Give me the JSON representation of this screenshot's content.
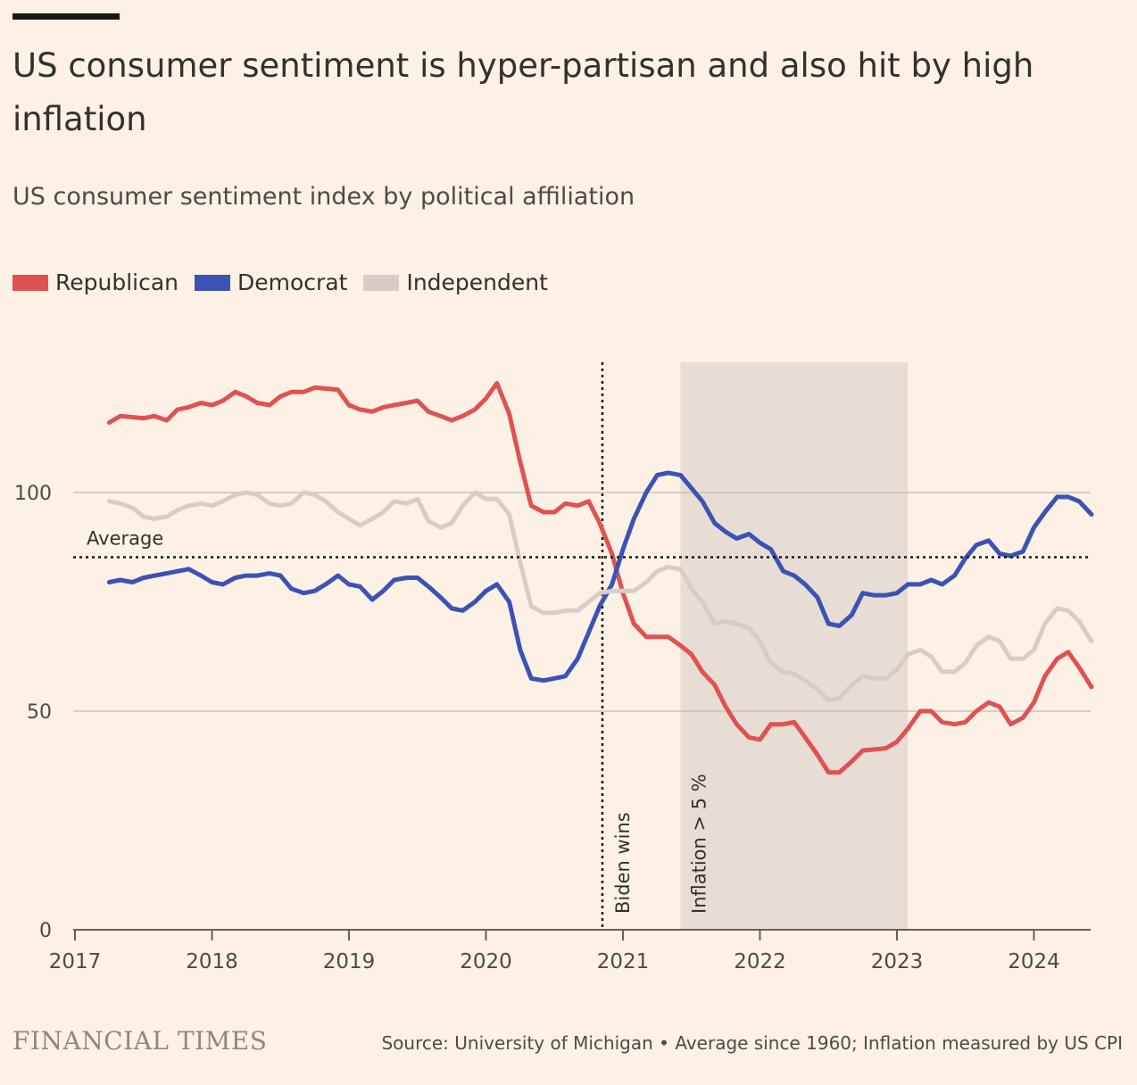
{
  "header": {
    "title": "US consumer sentiment is hyper-partisan and also hit by high inflation",
    "subtitle": "US consumer sentiment index by political affiliation"
  },
  "legend": [
    {
      "label": "Republican",
      "color": "#e05252"
    },
    {
      "label": "Democrat",
      "color": "#3a53b5"
    },
    {
      "label": "Independent",
      "color": "#d8cdc6"
    }
  ],
  "footer": {
    "brand": "FINANCIAL TIMES",
    "source": "Source: University of Michigan • Average since 1960; Inflation measured by US CPI"
  },
  "chart_data": {
    "type": "line",
    "xlim": [
      2017,
      2024.42
    ],
    "ylim": [
      0,
      130
    ],
    "x_ticks": [
      "2017",
      "2018",
      "2019",
      "2020",
      "2021",
      "2022",
      "2023",
      "2024"
    ],
    "y_ticks": [
      0,
      50,
      100
    ],
    "gridlines": true,
    "reference_line": {
      "label": "Average",
      "value": 85.2
    },
    "events": [
      {
        "label": "Biden wins",
        "x": 2020.85
      }
    ],
    "shaded_periods": [
      {
        "label": "Inflation > 5 %",
        "start": 2021.42,
        "end": 2023.08
      }
    ],
    "series": [
      {
        "name": "Republican",
        "color": "#e05252",
        "points": [
          [
            2017.25,
            116
          ],
          [
            2017.33,
            117.5
          ],
          [
            2017.5,
            117
          ],
          [
            2017.58,
            117.5
          ],
          [
            2017.67,
            116.5
          ],
          [
            2017.75,
            119
          ],
          [
            2017.83,
            119.5
          ],
          [
            2017.92,
            120.5
          ],
          [
            2018.0,
            120
          ],
          [
            2018.08,
            121
          ],
          [
            2018.17,
            123
          ],
          [
            2018.25,
            122
          ],
          [
            2018.33,
            120.5
          ],
          [
            2018.42,
            120
          ],
          [
            2018.5,
            122
          ],
          [
            2018.58,
            123
          ],
          [
            2018.67,
            123
          ],
          [
            2018.75,
            124
          ],
          [
            2018.92,
            123.5
          ],
          [
            2019.0,
            120
          ],
          [
            2019.08,
            119
          ],
          [
            2019.17,
            118.5
          ],
          [
            2019.25,
            119.5
          ],
          [
            2019.33,
            120
          ],
          [
            2019.42,
            120.5
          ],
          [
            2019.5,
            121
          ],
          [
            2019.58,
            118.5
          ],
          [
            2019.67,
            117.5
          ],
          [
            2019.75,
            116.5
          ],
          [
            2019.83,
            117.5
          ],
          [
            2019.92,
            119
          ],
          [
            2020.0,
            121.5
          ],
          [
            2020.08,
            125
          ],
          [
            2020.17,
            118
          ],
          [
            2020.25,
            107
          ],
          [
            2020.33,
            97
          ],
          [
            2020.42,
            95.5
          ],
          [
            2020.5,
            95.5
          ],
          [
            2020.58,
            97.5
          ],
          [
            2020.67,
            97
          ],
          [
            2020.75,
            98
          ],
          [
            2020.83,
            93
          ],
          [
            2020.92,
            86
          ],
          [
            2021.0,
            77
          ],
          [
            2021.08,
            70
          ],
          [
            2021.17,
            67
          ],
          [
            2021.25,
            67
          ],
          [
            2021.33,
            67
          ],
          [
            2021.42,
            65
          ],
          [
            2021.5,
            63
          ],
          [
            2021.58,
            59
          ],
          [
            2021.67,
            56
          ],
          [
            2021.75,
            51
          ],
          [
            2021.83,
            47
          ],
          [
            2021.92,
            44
          ],
          [
            2022.0,
            43.5
          ],
          [
            2022.08,
            47
          ],
          [
            2022.17,
            47
          ],
          [
            2022.25,
            47.5
          ],
          [
            2022.33,
            44
          ],
          [
            2022.42,
            40
          ],
          [
            2022.5,
            36
          ],
          [
            2022.58,
            36
          ],
          [
            2022.67,
            38.5
          ],
          [
            2022.75,
            41
          ],
          [
            2022.92,
            41.5
          ],
          [
            2023.0,
            43
          ],
          [
            2023.08,
            46
          ],
          [
            2023.17,
            50
          ],
          [
            2023.25,
            50
          ],
          [
            2023.33,
            47.5
          ],
          [
            2023.42,
            47
          ],
          [
            2023.5,
            47.5
          ],
          [
            2023.58,
            50
          ],
          [
            2023.67,
            52
          ],
          [
            2023.75,
            51
          ],
          [
            2023.83,
            47
          ],
          [
            2023.92,
            48.5
          ],
          [
            2024.0,
            52
          ],
          [
            2024.08,
            58
          ],
          [
            2024.17,
            62
          ],
          [
            2024.25,
            63.5
          ],
          [
            2024.33,
            60
          ],
          [
            2024.42,
            55.5
          ]
        ]
      },
      {
        "name": "Democrat",
        "color": "#3a53b5",
        "points": [
          [
            2017.25,
            79.5
          ],
          [
            2017.33,
            80
          ],
          [
            2017.42,
            79.5
          ],
          [
            2017.5,
            80.5
          ],
          [
            2017.67,
            81.5
          ],
          [
            2017.83,
            82.5
          ],
          [
            2017.92,
            81
          ],
          [
            2018.0,
            79.5
          ],
          [
            2018.08,
            79
          ],
          [
            2018.17,
            80.5
          ],
          [
            2018.25,
            81
          ],
          [
            2018.33,
            81
          ],
          [
            2018.42,
            81.5
          ],
          [
            2018.5,
            81
          ],
          [
            2018.58,
            78
          ],
          [
            2018.67,
            77
          ],
          [
            2018.75,
            77.5
          ],
          [
            2018.83,
            79
          ],
          [
            2018.92,
            81
          ],
          [
            2019.0,
            79
          ],
          [
            2019.08,
            78.5
          ],
          [
            2019.17,
            75.5
          ],
          [
            2019.25,
            77.5
          ],
          [
            2019.33,
            80
          ],
          [
            2019.42,
            80.5
          ],
          [
            2019.5,
            80.5
          ],
          [
            2019.58,
            78.5
          ],
          [
            2019.67,
            76
          ],
          [
            2019.75,
            73.5
          ],
          [
            2019.83,
            73
          ],
          [
            2019.92,
            75
          ],
          [
            2020.0,
            77.5
          ],
          [
            2020.08,
            79
          ],
          [
            2020.17,
            75
          ],
          [
            2020.25,
            64
          ],
          [
            2020.33,
            57.5
          ],
          [
            2020.42,
            57
          ],
          [
            2020.5,
            57.5
          ],
          [
            2020.58,
            58
          ],
          [
            2020.67,
            62
          ],
          [
            2020.75,
            68
          ],
          [
            2020.83,
            74
          ],
          [
            2020.92,
            79
          ],
          [
            2021.0,
            87
          ],
          [
            2021.08,
            94
          ],
          [
            2021.17,
            100
          ],
          [
            2021.25,
            104
          ],
          [
            2021.33,
            104.5
          ],
          [
            2021.42,
            104
          ],
          [
            2021.5,
            101
          ],
          [
            2021.58,
            98
          ],
          [
            2021.67,
            93
          ],
          [
            2021.75,
            91
          ],
          [
            2021.83,
            89.5
          ],
          [
            2021.92,
            90.5
          ],
          [
            2022.0,
            88.5
          ],
          [
            2022.08,
            87
          ],
          [
            2022.17,
            82
          ],
          [
            2022.25,
            81
          ],
          [
            2022.33,
            79
          ],
          [
            2022.42,
            76
          ],
          [
            2022.5,
            70
          ],
          [
            2022.58,
            69.5
          ],
          [
            2022.67,
            72
          ],
          [
            2022.75,
            77
          ],
          [
            2022.83,
            76.5
          ],
          [
            2022.92,
            76.5
          ],
          [
            2023.0,
            77
          ],
          [
            2023.08,
            79
          ],
          [
            2023.17,
            79
          ],
          [
            2023.25,
            80
          ],
          [
            2023.33,
            79
          ],
          [
            2023.42,
            81
          ],
          [
            2023.5,
            85
          ],
          [
            2023.58,
            88
          ],
          [
            2023.67,
            89
          ],
          [
            2023.75,
            86
          ],
          [
            2023.83,
            85.5
          ],
          [
            2023.92,
            86.5
          ],
          [
            2024.0,
            92
          ],
          [
            2024.08,
            95.5
          ],
          [
            2024.17,
            99
          ],
          [
            2024.25,
            99
          ],
          [
            2024.33,
            98
          ],
          [
            2024.42,
            95
          ]
        ]
      },
      {
        "name": "Independent",
        "color": "#d8cdc6",
        "points": [
          [
            2017.25,
            98
          ],
          [
            2017.33,
            97.5
          ],
          [
            2017.42,
            96.5
          ],
          [
            2017.5,
            94.5
          ],
          [
            2017.58,
            94
          ],
          [
            2017.67,
            94.5
          ],
          [
            2017.75,
            96
          ],
          [
            2017.83,
            97
          ],
          [
            2017.92,
            97.5
          ],
          [
            2018.0,
            97
          ],
          [
            2018.08,
            98
          ],
          [
            2018.17,
            99.5
          ],
          [
            2018.25,
            100
          ],
          [
            2018.33,
            99.5
          ],
          [
            2018.42,
            97.5
          ],
          [
            2018.5,
            97
          ],
          [
            2018.58,
            97.5
          ],
          [
            2018.67,
            100
          ],
          [
            2018.75,
            99.5
          ],
          [
            2018.83,
            98
          ],
          [
            2018.92,
            95.5
          ],
          [
            2019.0,
            94
          ],
          [
            2019.08,
            92.5
          ],
          [
            2019.17,
            94
          ],
          [
            2019.25,
            95.5
          ],
          [
            2019.33,
            98
          ],
          [
            2019.42,
            97.5
          ],
          [
            2019.5,
            98.5
          ],
          [
            2019.58,
            93.5
          ],
          [
            2019.67,
            92
          ],
          [
            2019.75,
            93
          ],
          [
            2019.83,
            97
          ],
          [
            2019.92,
            100
          ],
          [
            2020.0,
            98.5
          ],
          [
            2020.08,
            98.5
          ],
          [
            2020.17,
            95
          ],
          [
            2020.25,
            84
          ],
          [
            2020.33,
            74
          ],
          [
            2020.42,
            72.5
          ],
          [
            2020.5,
            72.5
          ],
          [
            2020.58,
            73
          ],
          [
            2020.67,
            73
          ],
          [
            2020.75,
            75
          ],
          [
            2020.83,
            77
          ],
          [
            2020.92,
            77.5
          ],
          [
            2021.0,
            77.5
          ],
          [
            2021.08,
            77.5
          ],
          [
            2021.17,
            79.5
          ],
          [
            2021.25,
            82
          ],
          [
            2021.33,
            83
          ],
          [
            2021.42,
            82.5
          ],
          [
            2021.5,
            78
          ],
          [
            2021.58,
            75
          ],
          [
            2021.67,
            70
          ],
          [
            2021.75,
            70.5
          ],
          [
            2021.83,
            70
          ],
          [
            2021.92,
            69
          ],
          [
            2022.0,
            66
          ],
          [
            2022.08,
            61
          ],
          [
            2022.17,
            59
          ],
          [
            2022.25,
            58.5
          ],
          [
            2022.33,
            57
          ],
          [
            2022.42,
            55
          ],
          [
            2022.5,
            52.5
          ],
          [
            2022.58,
            53
          ],
          [
            2022.67,
            56
          ],
          [
            2022.75,
            58
          ],
          [
            2022.83,
            57.5
          ],
          [
            2022.92,
            57.5
          ],
          [
            2023.0,
            59.5
          ],
          [
            2023.08,
            63
          ],
          [
            2023.17,
            64
          ],
          [
            2023.25,
            62.5
          ],
          [
            2023.33,
            59
          ],
          [
            2023.42,
            59
          ],
          [
            2023.5,
            61
          ],
          [
            2023.58,
            65
          ],
          [
            2023.67,
            67
          ],
          [
            2023.75,
            66
          ],
          [
            2023.83,
            62
          ],
          [
            2023.92,
            62
          ],
          [
            2024.0,
            64
          ],
          [
            2024.08,
            70
          ],
          [
            2024.17,
            73.5
          ],
          [
            2024.25,
            73
          ],
          [
            2024.33,
            70.5
          ],
          [
            2024.42,
            66
          ]
        ]
      }
    ]
  }
}
